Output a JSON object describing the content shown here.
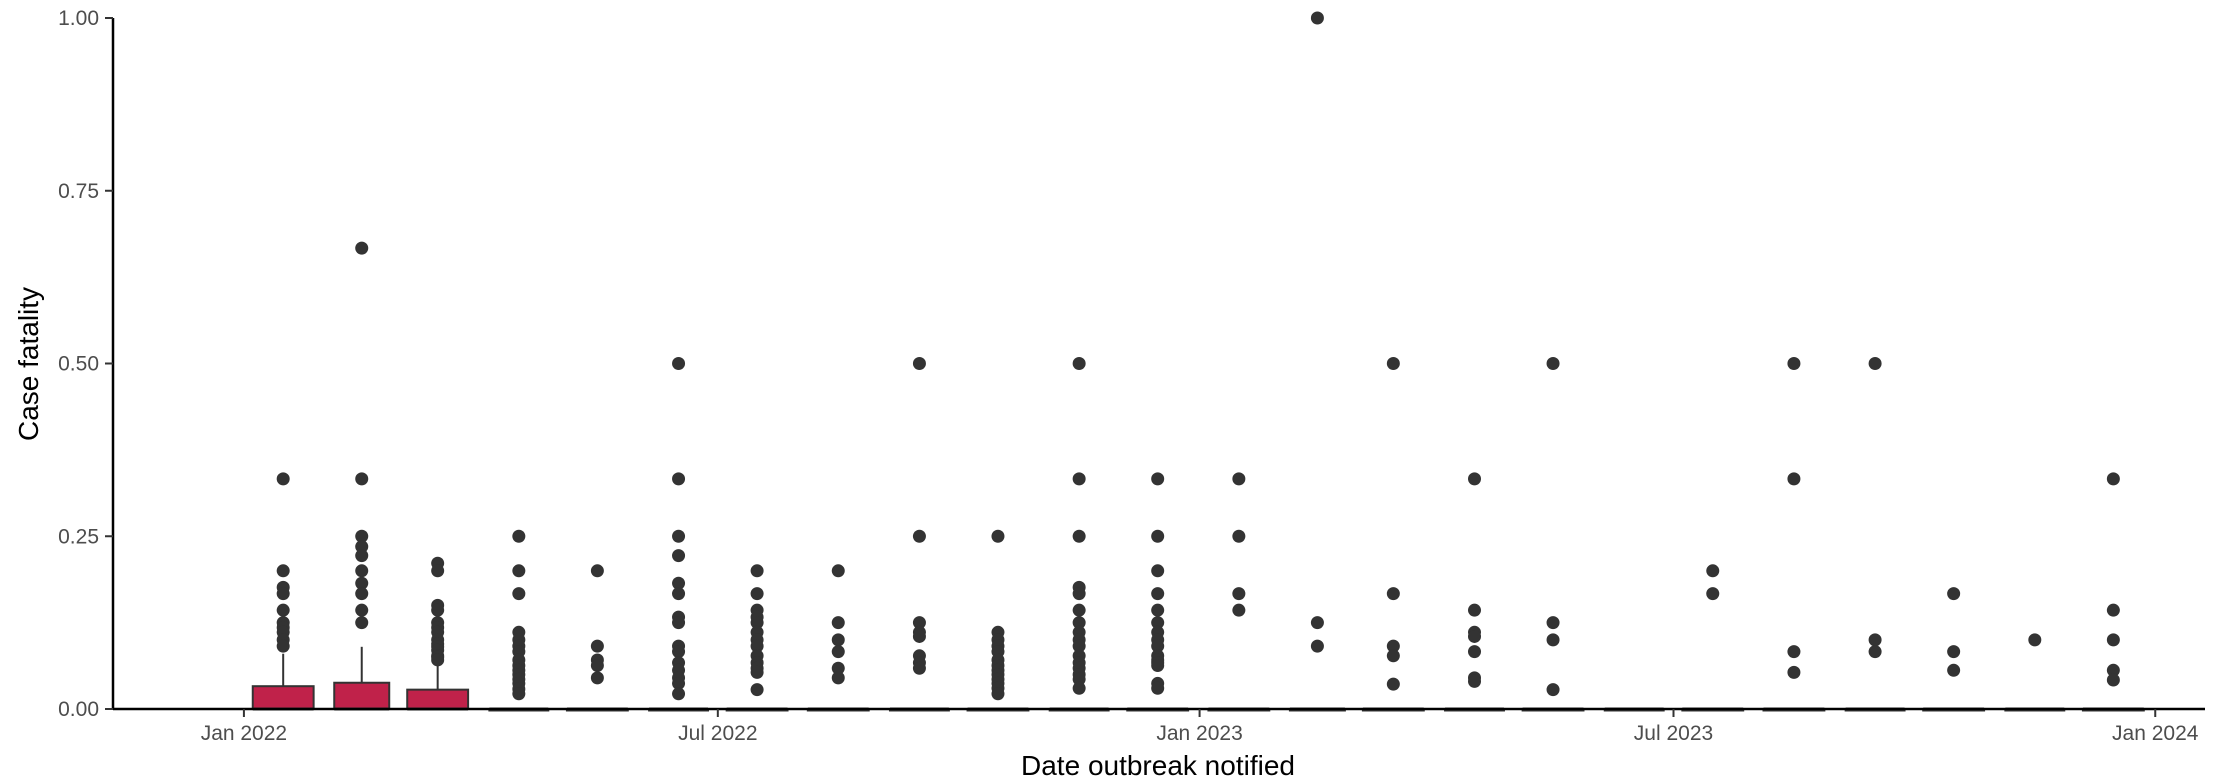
{
  "chart_data": {
    "type": "boxplot",
    "xlabel": "Date outbreak notified",
    "ylabel": "Case fatality",
    "ylim": [
      0,
      1
    ],
    "xlim": [
      "2021-11-12",
      "2024-01-20"
    ],
    "grid": false,
    "legend": "none",
    "y_ticks": [
      {
        "value": 0,
        "label": "0.00"
      },
      {
        "value": 0.25,
        "label": "0.25"
      },
      {
        "value": 0.5,
        "label": "0.50"
      },
      {
        "value": 0.75,
        "label": "0.75"
      },
      {
        "value": 1,
        "label": "1.00"
      }
    ],
    "x_ticks": [
      {
        "value": "2022-01-01",
        "label": "Jan 2022"
      },
      {
        "value": "2022-07-01",
        "label": "Jul 2022"
      },
      {
        "value": "2023-01-01",
        "label": "Jan 2023"
      },
      {
        "value": "2023-07-01",
        "label": "Jul 2023"
      },
      {
        "value": "2024-01-01",
        "label": "Jan 2024"
      }
    ],
    "box_color": "#c0224a",
    "box_outline_color": "#333333",
    "point_color": "#333333",
    "boxes": [
      {
        "month": "2022-01",
        "q1": 0,
        "median": 0,
        "q3": 0.033,
        "whisker_low": 0,
        "whisker_high": 0.08,
        "outliers": [
          0.333,
          0.2,
          0.176,
          0.167,
          0.143,
          0.125,
          0.118,
          0.111,
          0.1,
          0.091
        ]
      },
      {
        "month": "2022-02",
        "q1": 0,
        "median": 0,
        "q3": 0.038,
        "whisker_low": 0,
        "whisker_high": 0.09,
        "outliers": [
          0.667,
          0.333,
          0.25,
          0.235,
          0.222,
          0.2,
          0.182,
          0.167,
          0.143,
          0.125
        ]
      },
      {
        "month": "2022-03",
        "q1": 0,
        "median": 0,
        "q3": 0.028,
        "whisker_low": 0,
        "whisker_high": 0.07,
        "outliers": [
          0.211,
          0.2,
          0.15,
          0.143,
          0.125,
          0.118,
          0.111,
          0.1,
          0.094,
          0.09,
          0.085,
          0.077,
          0.075,
          0.071
        ]
      },
      {
        "month": "2022-04",
        "q1": 0,
        "median": 0,
        "q3": 0,
        "whisker_low": 0,
        "whisker_high": 0,
        "outliers": [
          0.25,
          0.2,
          0.167,
          0.111,
          0.1,
          0.091,
          0.083,
          0.071,
          0.063,
          0.056,
          0.05,
          0.043,
          0.037,
          0.029,
          0.022
        ]
      },
      {
        "month": "2022-05",
        "q1": 0,
        "median": 0,
        "q3": 0,
        "whisker_low": 0,
        "whisker_high": 0,
        "outliers": [
          0.2,
          0.091,
          0.071,
          0.063,
          0.045
        ]
      },
      {
        "month": "2022-06",
        "q1": 0,
        "median": 0,
        "q3": 0,
        "whisker_low": 0,
        "whisker_high": 0,
        "outliers": [
          0.5,
          0.333,
          0.25,
          0.222,
          0.182,
          0.167,
          0.133,
          0.125,
          0.091,
          0.083,
          0.067,
          0.056,
          0.045,
          0.037,
          0.022
        ]
      },
      {
        "month": "2022-07",
        "q1": 0,
        "median": 0,
        "q3": 0,
        "whisker_low": 0,
        "whisker_high": 0,
        "outliers": [
          0.2,
          0.167,
          0.143,
          0.133,
          0.125,
          0.111,
          0.1,
          0.091,
          0.077,
          0.067,
          0.059,
          0.053,
          0.028
        ]
      },
      {
        "month": "2022-08",
        "q1": 0,
        "median": 0,
        "q3": 0,
        "whisker_low": 0,
        "whisker_high": 0,
        "outliers": [
          0.2,
          0.125,
          0.1,
          0.083,
          0.059,
          0.045
        ]
      },
      {
        "month": "2022-09",
        "q1": 0,
        "median": 0,
        "q3": 0,
        "whisker_low": 0,
        "whisker_high": 0,
        "outliers": [
          0.5,
          0.25,
          0.125,
          0.111,
          0.105,
          0.077,
          0.067,
          0.059
        ]
      },
      {
        "month": "2022-10",
        "q1": 0,
        "median": 0,
        "q3": 0,
        "whisker_low": 0,
        "whisker_high": 0,
        "outliers": [
          0.25,
          0.111,
          0.1,
          0.091,
          0.083,
          0.071,
          0.063,
          0.056,
          0.05,
          0.043,
          0.037,
          0.03,
          0.022
        ]
      },
      {
        "month": "2022-11",
        "q1": 0,
        "median": 0,
        "q3": 0,
        "whisker_low": 0,
        "whisker_high": 0,
        "outliers": [
          0.5,
          0.333,
          0.25,
          0.176,
          0.167,
          0.143,
          0.125,
          0.111,
          0.1,
          0.091,
          0.077,
          0.067,
          0.059,
          0.05,
          0.043,
          0.03
        ]
      },
      {
        "month": "2022-12",
        "q1": 0,
        "median": 0,
        "q3": 0,
        "whisker_low": 0,
        "whisker_high": 0,
        "outliers": [
          0.333,
          0.25,
          0.2,
          0.167,
          0.143,
          0.125,
          0.111,
          0.1,
          0.091,
          0.077,
          0.071,
          0.067,
          0.063,
          0.037,
          0.03
        ]
      },
      {
        "month": "2023-01",
        "q1": 0,
        "median": 0,
        "q3": 0,
        "whisker_low": 0,
        "whisker_high": 0,
        "outliers": [
          0.333,
          0.25,
          0.167,
          0.143
        ]
      },
      {
        "month": "2023-02",
        "q1": 0,
        "median": 0,
        "q3": 0,
        "whisker_low": 0,
        "whisker_high": 0,
        "outliers": [
          1.0,
          0.125,
          0.091
        ]
      },
      {
        "month": "2023-03",
        "q1": 0,
        "median": 0,
        "q3": 0,
        "whisker_low": 0,
        "whisker_high": 0,
        "outliers": [
          0.5,
          0.167,
          0.091,
          0.077,
          0.036
        ]
      },
      {
        "month": "2023-04",
        "q1": 0,
        "median": 0,
        "q3": 0,
        "whisker_low": 0,
        "whisker_high": 0,
        "outliers": [
          0.333,
          0.143,
          0.111,
          0.105,
          0.083,
          0.045,
          0.04
        ]
      },
      {
        "month": "2023-05",
        "q1": 0,
        "median": 0,
        "q3": 0,
        "whisker_low": 0,
        "whisker_high": 0,
        "outliers": [
          0.5,
          0.125,
          0.1,
          0.028
        ]
      },
      {
        "month": "2023-06",
        "q1": 0,
        "median": 0,
        "q3": 0,
        "whisker_low": 0,
        "whisker_high": 0,
        "outliers": []
      },
      {
        "month": "2023-07",
        "q1": 0,
        "median": 0,
        "q3": 0,
        "whisker_low": 0,
        "whisker_high": 0,
        "outliers": [
          0.2,
          0.167
        ]
      },
      {
        "month": "2023-08",
        "q1": 0,
        "median": 0,
        "q3": 0,
        "whisker_low": 0,
        "whisker_high": 0,
        "outliers": [
          0.5,
          0.333,
          0.083,
          0.053
        ]
      },
      {
        "month": "2023-09",
        "q1": 0,
        "median": 0,
        "q3": 0,
        "whisker_low": 0,
        "whisker_high": 0,
        "outliers": [
          0.5,
          0.1,
          0.083
        ]
      },
      {
        "month": "2023-10",
        "q1": 0,
        "median": 0,
        "q3": 0,
        "whisker_low": 0,
        "whisker_high": 0,
        "outliers": [
          0.167,
          0.083,
          0.056
        ]
      },
      {
        "month": "2023-11",
        "q1": 0,
        "median": 0,
        "q3": 0,
        "whisker_low": 0,
        "whisker_high": 0,
        "outliers": [
          0.1
        ]
      },
      {
        "month": "2023-12",
        "q1": 0,
        "median": 0,
        "q3": 0,
        "whisker_low": 0,
        "whisker_high": 0,
        "outliers": [
          0.333,
          0.143,
          0.1,
          0.056,
          0.042
        ]
      }
    ]
  }
}
